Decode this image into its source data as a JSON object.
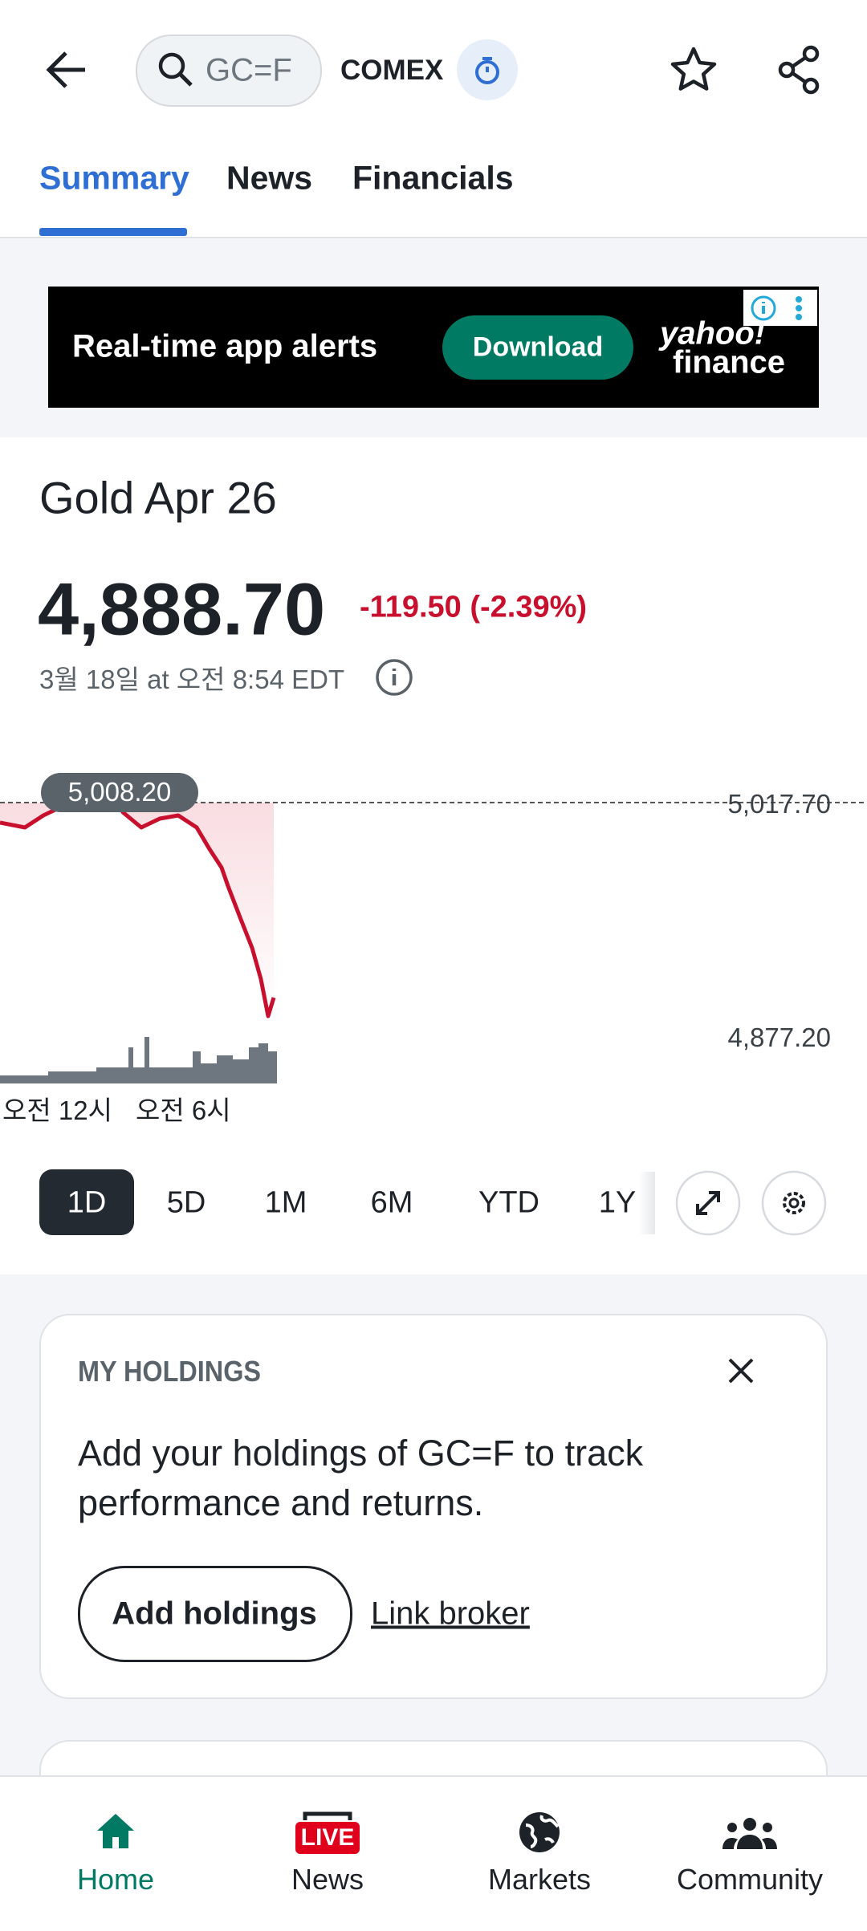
{
  "header": {
    "search": "GC=F",
    "exchange": "COMEX"
  },
  "tabs": [
    "Summary",
    "News",
    "Financials"
  ],
  "ad": {
    "text": "Real-time app alerts",
    "button": "Download",
    "brand": [
      "yahoo!",
      "finance"
    ]
  },
  "quote": {
    "name": "Gold Apr 26",
    "price": "4,888.70",
    "change": "-119.50 (-2.39%)",
    "time": "3월 18일 at 오전 8:54 EDT"
  },
  "chart": {
    "prev_close_label": "5,008.20",
    "top_label": "5,017.70",
    "bottom_label": "4,877.20",
    "x_labels": [
      "오전 12시",
      "오전 6시"
    ]
  },
  "ranges": [
    "1D",
    "5D",
    "1M",
    "6M",
    "YTD",
    "1Y"
  ],
  "holdings": {
    "title": "MY HOLDINGS",
    "text": "Add your holdings of GC=F to track performance and returns.",
    "add_button": "Add holdings",
    "link": "Link broker"
  },
  "nav": [
    "Home",
    "News",
    "Markets",
    "Community"
  ]
}
